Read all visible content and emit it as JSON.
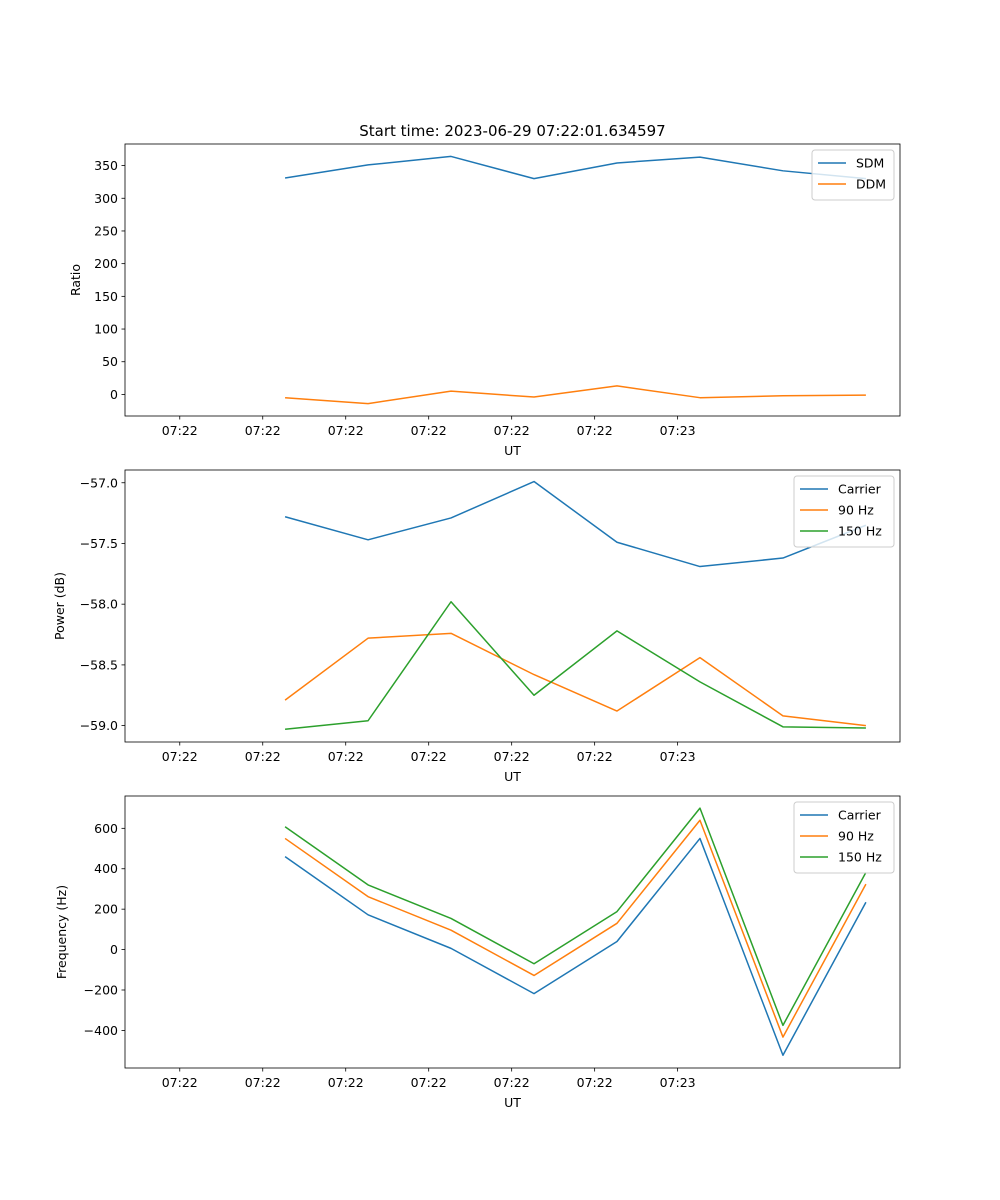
{
  "figure": {
    "title": "Start time: 2023-06-29 07:22:01.634597"
  },
  "chart_data": [
    {
      "type": "line",
      "xlabel": "UT",
      "ylabel": "Ratio",
      "x": [
        "07:22:01.634597",
        "07:22:02.134597",
        "07:22:02.634597",
        "07:22:03.134597",
        "07:22:03.634597",
        "07:22:04.134597",
        "07:22:04.634597",
        "07:22:05.134597"
      ],
      "x_tick_labels": [
        "07:22",
        "07:22",
        "07:22",
        "07:22",
        "07:22",
        "07:22",
        "07:23"
      ],
      "ylim": [
        -33,
        383
      ],
      "y_ticks": [
        0,
        50,
        100,
        150,
        200,
        250,
        300,
        350
      ],
      "grid": false,
      "legend": "top-right",
      "series": [
        {
          "name": "SDM",
          "color": "#1f77b4",
          "values": [
            331,
            351,
            364,
            330,
            354,
            363,
            342,
            330
          ]
        },
        {
          "name": "DDM",
          "color": "#ff7f0e",
          "values": [
            -5,
            -14,
            5,
            -4,
            13,
            -5,
            -2,
            -1
          ]
        }
      ]
    },
    {
      "type": "line",
      "xlabel": "UT",
      "ylabel": "Power (dB)",
      "x": [
        "07:22:01.634597",
        "07:22:02.134597",
        "07:22:02.634597",
        "07:22:03.134597",
        "07:22:03.634597",
        "07:22:04.134597",
        "07:22:04.634597",
        "07:22:05.134597"
      ],
      "x_tick_labels": [
        "07:22",
        "07:22",
        "07:22",
        "07:22",
        "07:22",
        "07:22",
        "07:23"
      ],
      "ylim": [
        -59.135,
        -56.895
      ],
      "y_ticks": [
        -59.0,
        -58.5,
        -58.0,
        -57.5,
        -57.0
      ],
      "grid": false,
      "legend": "top-right",
      "series": [
        {
          "name": "Carrier",
          "color": "#1f77b4",
          "values": [
            -57.28,
            -57.47,
            -57.29,
            -56.99,
            -57.49,
            -57.69,
            -57.62,
            -57.35
          ]
        },
        {
          "name": "90 Hz",
          "color": "#ff7f0e",
          "values": [
            -58.79,
            -58.28,
            -58.24,
            -58.58,
            -58.88,
            -58.44,
            -58.92,
            -59.0
          ]
        },
        {
          "name": "150 Hz",
          "color": "#2ca02c",
          "values": [
            -59.03,
            -58.96,
            -57.98,
            -58.75,
            -58.22,
            -58.64,
            -59.01,
            -59.02
          ]
        }
      ]
    },
    {
      "type": "line",
      "xlabel": "UT",
      "ylabel": "Frequency (Hz)",
      "x": [
        "07:22:01.634597",
        "07:22:02.134597",
        "07:22:02.634597",
        "07:22:03.134597",
        "07:22:03.634597",
        "07:22:04.134597",
        "07:22:04.634597",
        "07:22:05.134597"
      ],
      "x_tick_labels": [
        "07:22",
        "07:22",
        "07:22",
        "07:22",
        "07:22",
        "07:22",
        "07:23"
      ],
      "ylim": [
        -586,
        760
      ],
      "y_ticks": [
        -400,
        -200,
        0,
        200,
        400,
        600
      ],
      "grid": false,
      "legend": "top-right",
      "series": [
        {
          "name": "Carrier",
          "color": "#1f77b4",
          "values": [
            460,
            172,
            6,
            -218,
            40,
            550,
            -523,
            234
          ]
        },
        {
          "name": "90 Hz",
          "color": "#ff7f0e",
          "values": [
            550,
            262,
            96,
            -128,
            130,
            640,
            -433,
            324
          ]
        },
        {
          "name": "150 Hz",
          "color": "#2ca02c",
          "values": [
            608,
            320,
            154,
            -70,
            188,
            700,
            -375,
            382
          ]
        }
      ]
    }
  ]
}
